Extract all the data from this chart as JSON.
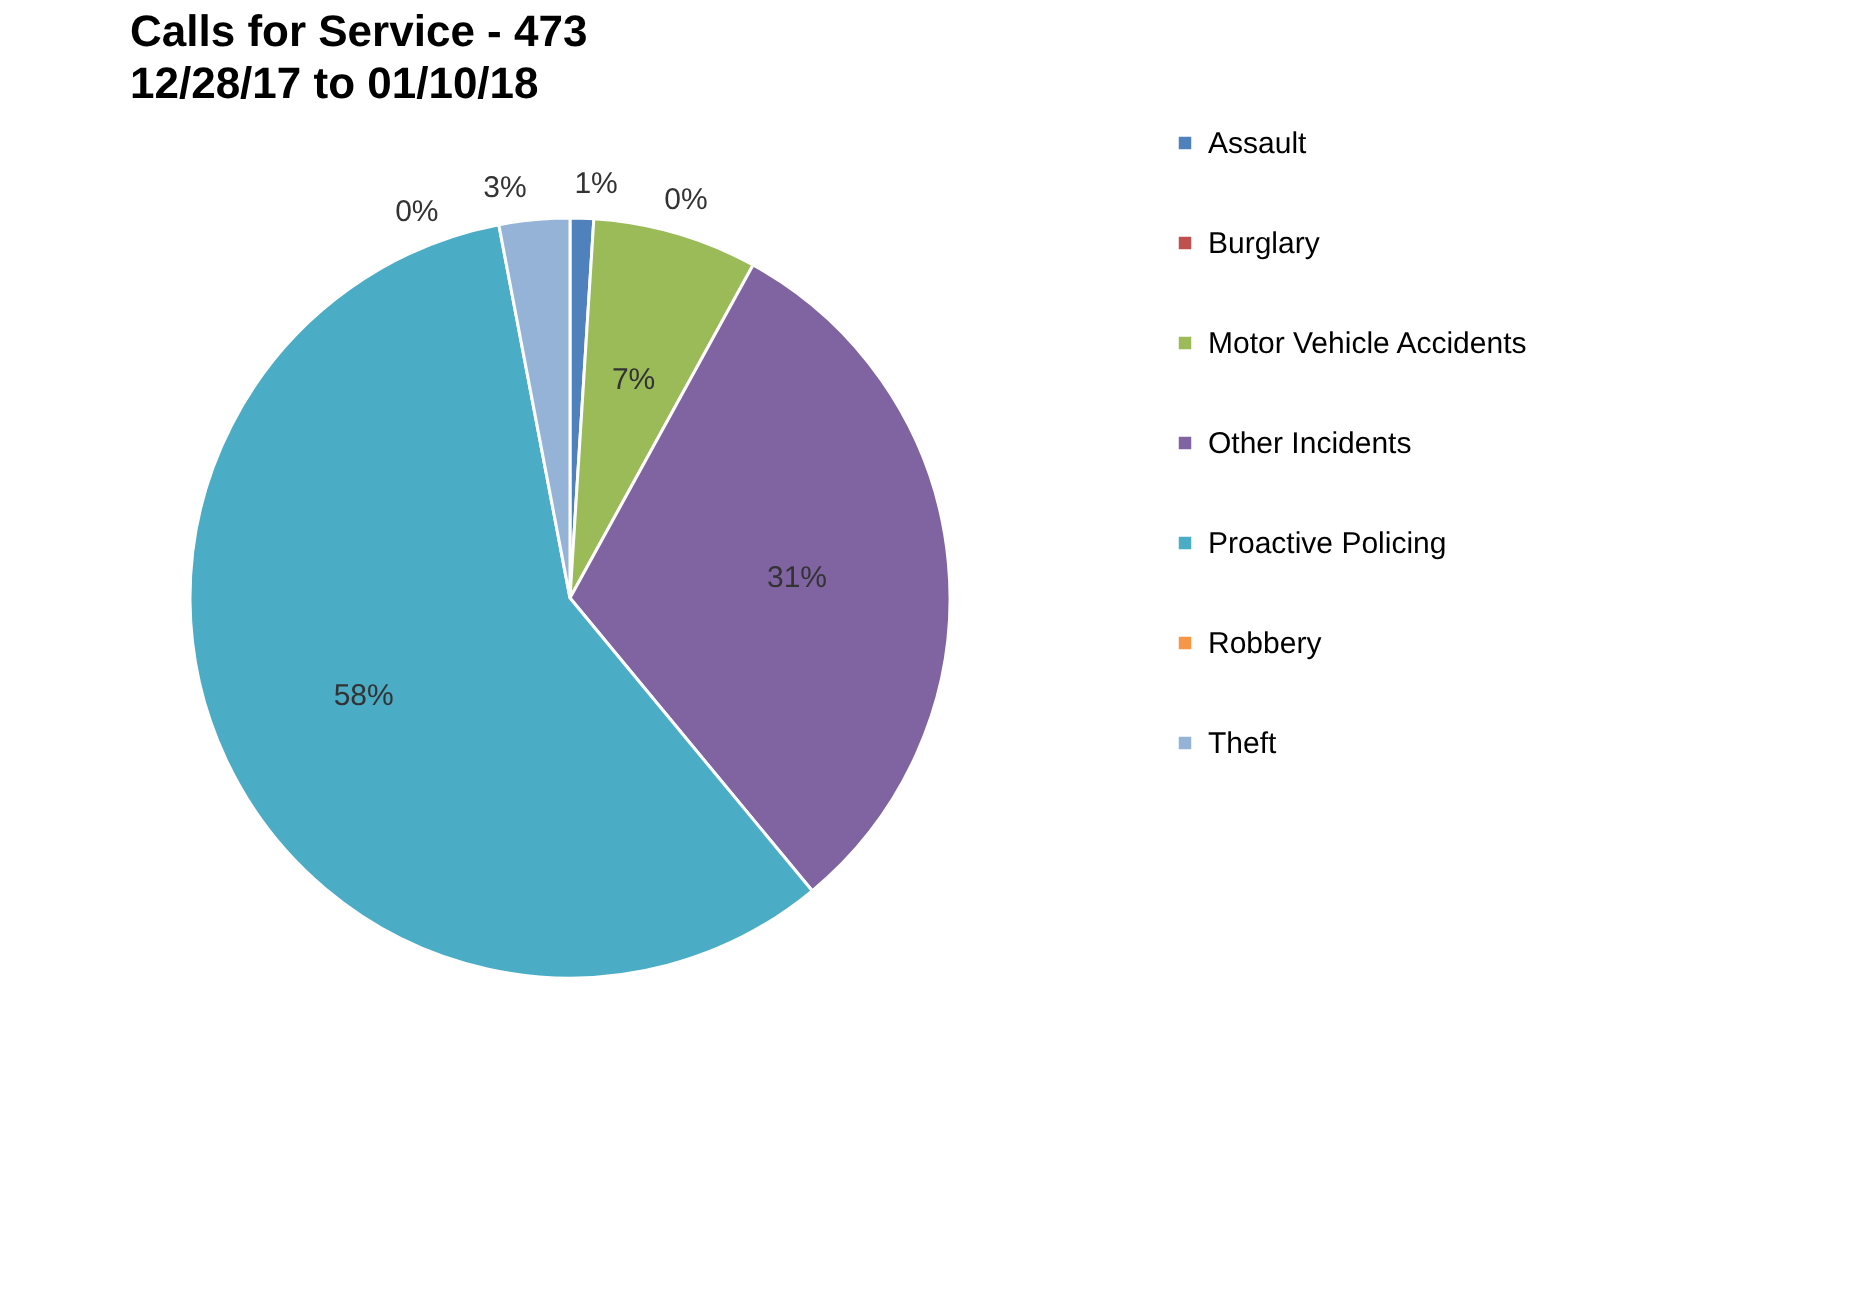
{
  "chart_data": {
    "type": "pie",
    "title": "Calls for Service - 473",
    "subtitle": "12/28/17 to 01/10/18",
    "categories": [
      "Assault",
      "Burglary",
      "Motor Vehicle Accidents",
      "Other Incidents",
      "Proactive Policing",
      "Robbery",
      "Theft"
    ],
    "values": [
      1,
      0,
      7,
      31,
      58,
      0,
      3
    ],
    "colors": [
      "#4f81bd",
      "#c0504d",
      "#9bbb59",
      "#8064a2",
      "#4bacc6",
      "#f79646",
      "#95b3d7"
    ],
    "value_labels": [
      "1%",
      "0%",
      "7%",
      "31%",
      "58%",
      "0%",
      "3%"
    ],
    "legend": "right"
  }
}
